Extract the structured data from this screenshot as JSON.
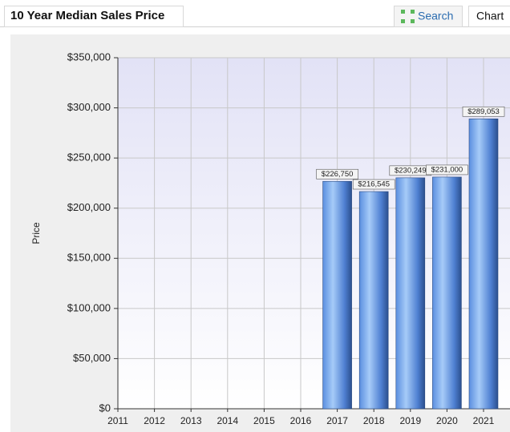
{
  "header": {
    "title": "10 Year Median Sales Price",
    "search": "Search",
    "chart_tab": "Chart"
  },
  "chart_data": {
    "type": "bar",
    "categories": [
      "2011",
      "2012",
      "2013",
      "2014",
      "2015",
      "2016",
      "2017",
      "2018",
      "2019",
      "2020",
      "2021"
    ],
    "values": [
      null,
      null,
      null,
      null,
      null,
      null,
      226750,
      216545,
      230249,
      231000,
      289053
    ],
    "value_labels": [
      null,
      null,
      null,
      null,
      null,
      null,
      "$226,750",
      "$216,545",
      "$230,249",
      "$231,000",
      "$289,053"
    ],
    "ylabel": "Price",
    "ylim": [
      0,
      350000
    ],
    "yticks": [
      {
        "value": 0,
        "label": "$0"
      },
      {
        "value": 50000,
        "label": "$50,000"
      },
      {
        "value": 100000,
        "label": "$100,000"
      },
      {
        "value": 150000,
        "label": "$150,000"
      },
      {
        "value": 200000,
        "label": "$200,000"
      },
      {
        "value": 250000,
        "label": "$250,000"
      },
      {
        "value": 300000,
        "label": "$300,000"
      },
      {
        "value": 350000,
        "label": "$350,000"
      }
    ],
    "color": "#4f86dc",
    "grid": true
  }
}
